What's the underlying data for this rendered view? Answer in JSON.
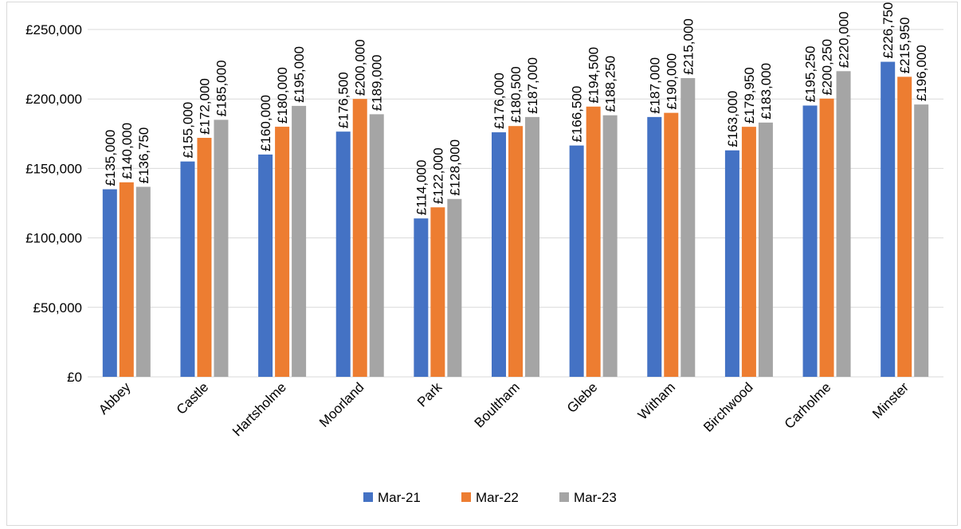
{
  "chart_data": {
    "type": "bar",
    "title": "",
    "xlabel": "",
    "ylabel": "",
    "categories": [
      "Abbey",
      "Castle",
      "Hartsholme",
      "Moorland",
      "Park",
      "Boultham",
      "Glebe",
      "Witham",
      "Birchwood",
      "Carholme",
      "Minster"
    ],
    "series": [
      {
        "name": "Mar-21",
        "color": "#4472c4",
        "values": [
          135000,
          155000,
          160000,
          176500,
          114000,
          176000,
          166500,
          187000,
          163000,
          195250,
          226750
        ],
        "labels": [
          "£135,000",
          "£155,000",
          "£160,000",
          "£176,500",
          "£114,000",
          "£176,000",
          "£166,500",
          "£187,000",
          "£163,000",
          "£195,250",
          "£226,750"
        ]
      },
      {
        "name": "Mar-22",
        "color": "#ed7d31",
        "values": [
          140000,
          172000,
          180000,
          200000,
          122000,
          180500,
          194500,
          190000,
          179950,
          200250,
          215950
        ],
        "labels": [
          "£140,000",
          "£172,000",
          "£180,000",
          "£200,000",
          "£122,000",
          "£180,500",
          "£194,500",
          "£190,000",
          "£179,950",
          "£200,250",
          "£215,950"
        ]
      },
      {
        "name": "Mar-23",
        "color": "#a5a5a5",
        "values": [
          136750,
          185000,
          195000,
          189000,
          128000,
          187000,
          188250,
          215000,
          183000,
          220000,
          196000
        ],
        "labels": [
          "£136,750",
          "£185,000",
          "£195,000",
          "£189,000",
          "£128,000",
          "£187,000",
          "£188,250",
          "£215,000",
          "£183,000",
          "£220,000",
          "£196,000"
        ]
      }
    ],
    "ylim": [
      0,
      250000
    ],
    "yticks": [
      0,
      50000,
      100000,
      150000,
      200000,
      250000
    ],
    "ytick_labels": [
      "£0",
      "£50,000",
      "£100,000",
      "£150,000",
      "£200,000",
      "£250,000"
    ],
    "grid": true,
    "legend_position": "bottom",
    "gridline_color": "#d9d9d9"
  }
}
